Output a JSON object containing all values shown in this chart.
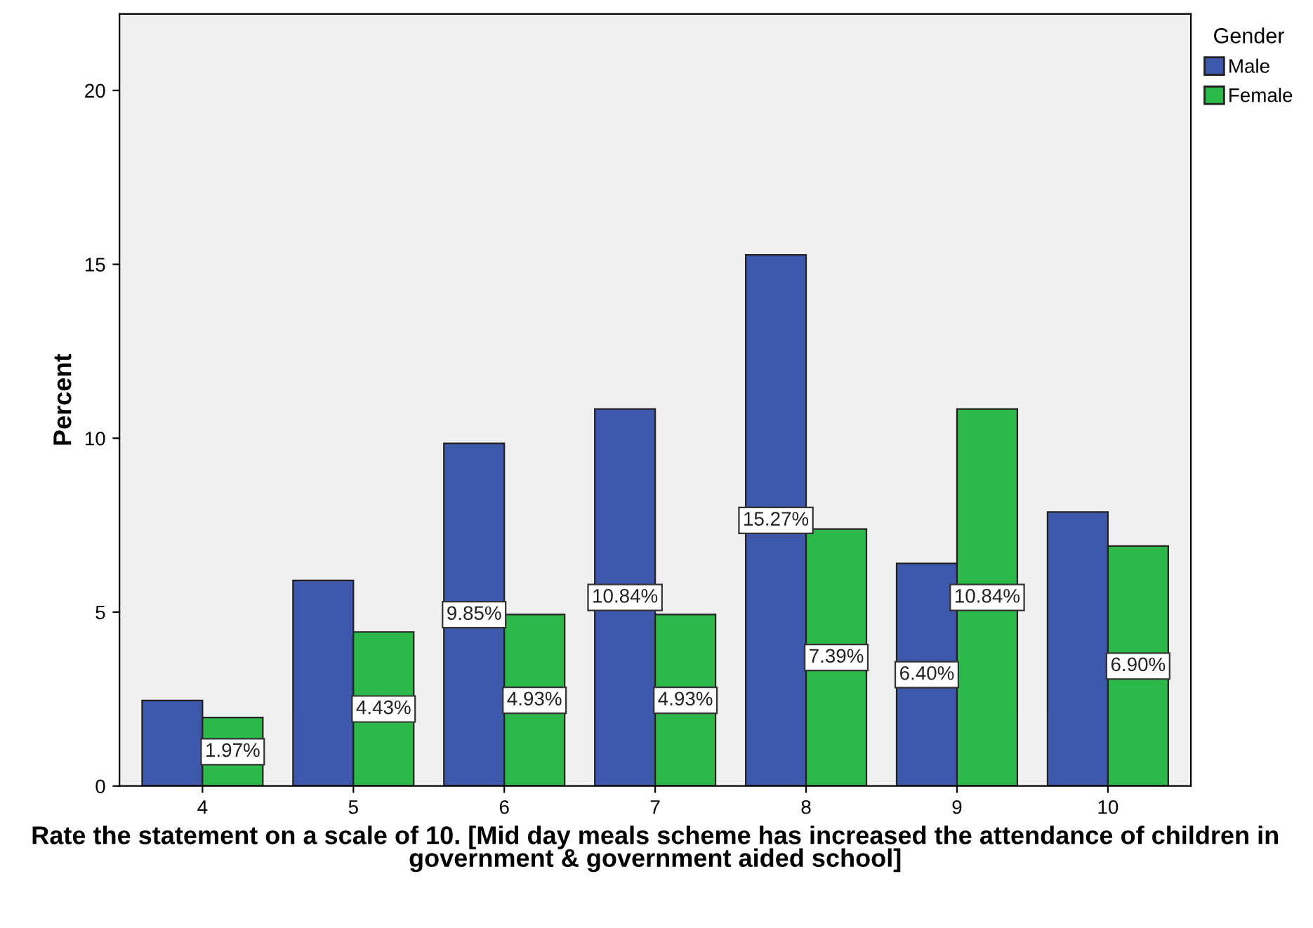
{
  "chart_data": {
    "type": "bar",
    "xlabel": "Rate the statement on a scale of 10. [Mid day meals scheme has increased the attendance of children in government & government aided school]",
    "ylabel": "Percent",
    "legend_title": "Gender",
    "categories": [
      "4",
      "5",
      "6",
      "7",
      "8",
      "9",
      "10"
    ],
    "series": [
      {
        "name": "Male",
        "color": "#3e58ac",
        "values": [
          2.46,
          5.91,
          9.85,
          10.84,
          15.27,
          6.4,
          7.88
        ],
        "value_labels": [
          null,
          null,
          "9.85%",
          "10.84%",
          "15.27%",
          "6.40%",
          null
        ]
      },
      {
        "name": "Female",
        "color": "#2db84a",
        "values": [
          1.97,
          4.43,
          4.93,
          4.93,
          7.39,
          10.84,
          6.9
        ],
        "value_labels": [
          "1.97%",
          "4.43%",
          "4.93%",
          "4.93%",
          "7.39%",
          "10.84%",
          "6.90%"
        ]
      }
    ],
    "ylim": [
      0,
      22.2
    ],
    "yticks": [
      0,
      5,
      10,
      15,
      20
    ],
    "grid": false,
    "legend": "top right"
  }
}
